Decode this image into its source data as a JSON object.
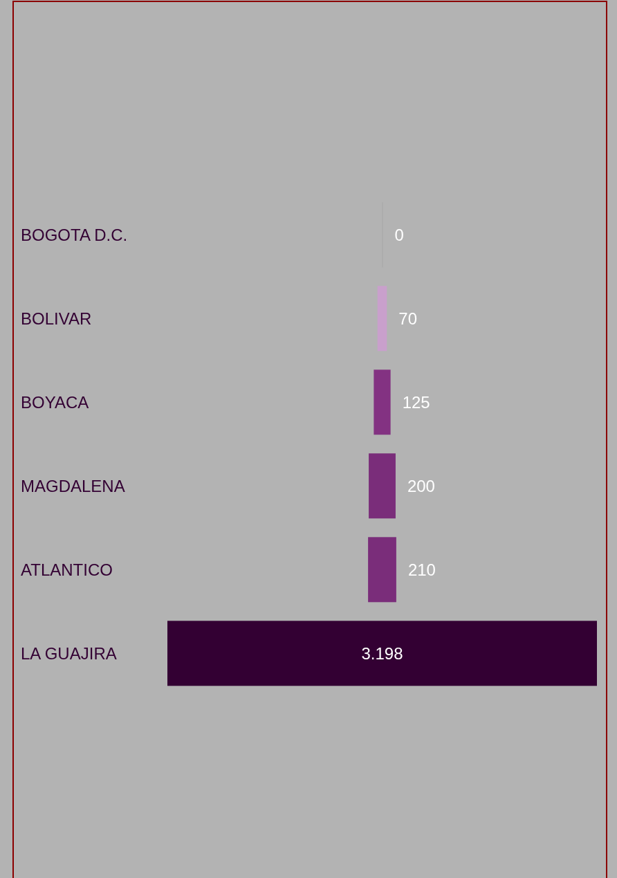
{
  "chart_data": {
    "type": "other",
    "categories": [
      "BOGOTA D.C.",
      "BOLIVAR",
      "BOYACA",
      "MAGDALENA",
      "ATLANTICO",
      "LA GUAJIRA"
    ],
    "values": [
      0,
      70,
      125,
      200,
      210,
      3198
    ],
    "colors": [
      "#a6a6a6",
      "#c9a0cc",
      "#833282",
      "#7a2d7a",
      "#7a2d7a",
      "#330033"
    ],
    "value_labels": [
      "0",
      "70",
      "125",
      "200",
      "210",
      "3.198"
    ]
  }
}
